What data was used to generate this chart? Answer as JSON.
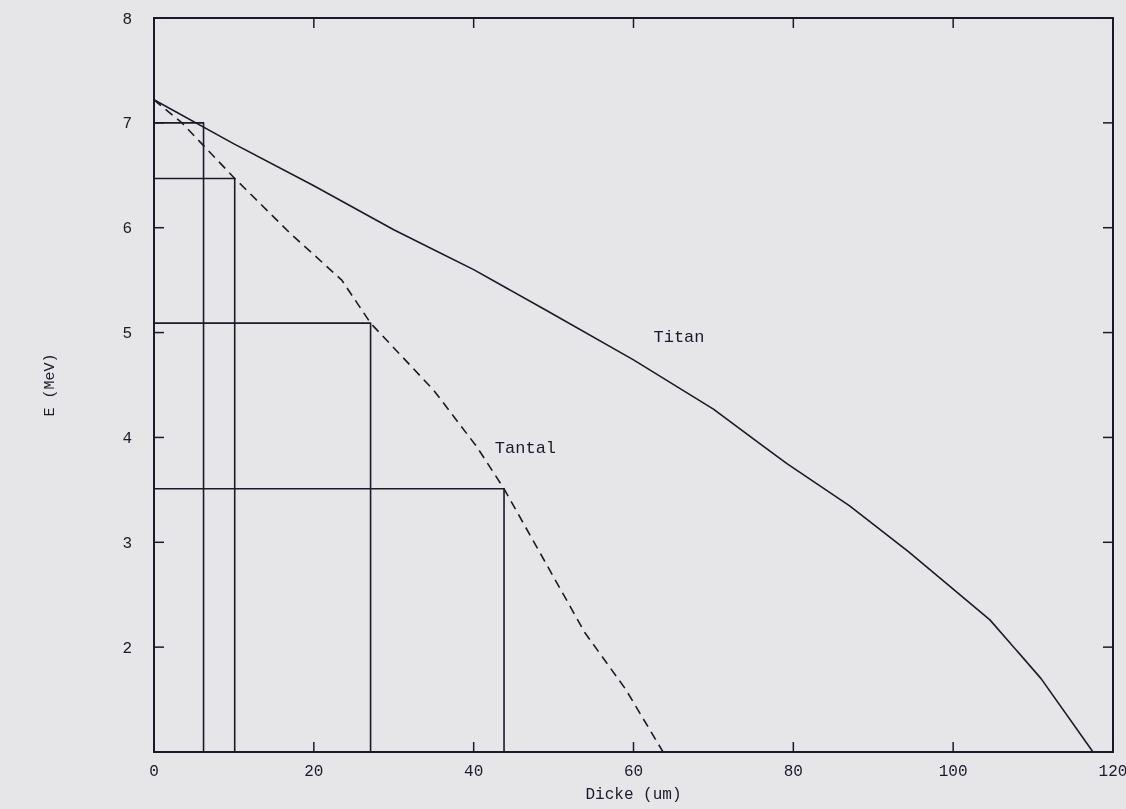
{
  "chart_data": {
    "type": "line",
    "xlabel": "Dicke (um)",
    "ylabel": "E (MeV)",
    "xlim": [
      0,
      120
    ],
    "ylim": [
      1,
      8
    ],
    "xticks": [
      0,
      20,
      40,
      60,
      80,
      100,
      120
    ],
    "yticks": [
      {
        "value": 1,
        "label": null
      },
      2,
      3,
      4,
      5,
      6,
      7,
      8
    ],
    "grid": false,
    "marker": "none",
    "series": [
      {
        "name": "Titan",
        "color": "#1a1a2a",
        "line_style": "solid",
        "x": [
          0,
          10,
          20,
          30,
          40,
          48.9,
          60,
          70,
          79.2,
          87,
          94.4,
          104.6,
          111,
          117.5
        ],
        "values": [
          7.22,
          6.8,
          6.4,
          5.98,
          5.6,
          5.22,
          4.74,
          4.27,
          3.75,
          3.35,
          2.91,
          2.26,
          1.7,
          1.0
        ]
      },
      {
        "name": "Tantal",
        "color": "#1a1a2a",
        "line_style": "dashed",
        "x": [
          0,
          3.5,
          10.1,
          17,
          23.5,
          27.1,
          35,
          40.4,
          43.8,
          53.9,
          59,
          63.7
        ],
        "values": [
          7.22,
          7.0,
          6.47,
          5.95,
          5.5,
          5.09,
          4.45,
          3.91,
          3.51,
          2.14,
          1.6,
          1.0
        ]
      },
      {
        "color": "#1a1a2a",
        "line_style": "solid",
        "x": [
          0,
          6.2,
          6.2
        ],
        "values": [
          7.0,
          7.0,
          1
        ]
      },
      {
        "color": "#1a1a2a",
        "line_style": "solid",
        "x": [
          0,
          10.1,
          10.1
        ],
        "values": [
          6.47,
          6.47,
          1
        ]
      },
      {
        "color": "#1a1a2a",
        "line_style": "solid",
        "x": [
          0,
          27.1,
          27.1
        ],
        "values": [
          5.09,
          5.09,
          1
        ]
      },
      {
        "color": "#1a1a2a",
        "line_style": "solid",
        "x": [
          0,
          43.8,
          43.8
        ],
        "values": [
          3.51,
          3.51,
          1
        ]
      }
    ]
  }
}
